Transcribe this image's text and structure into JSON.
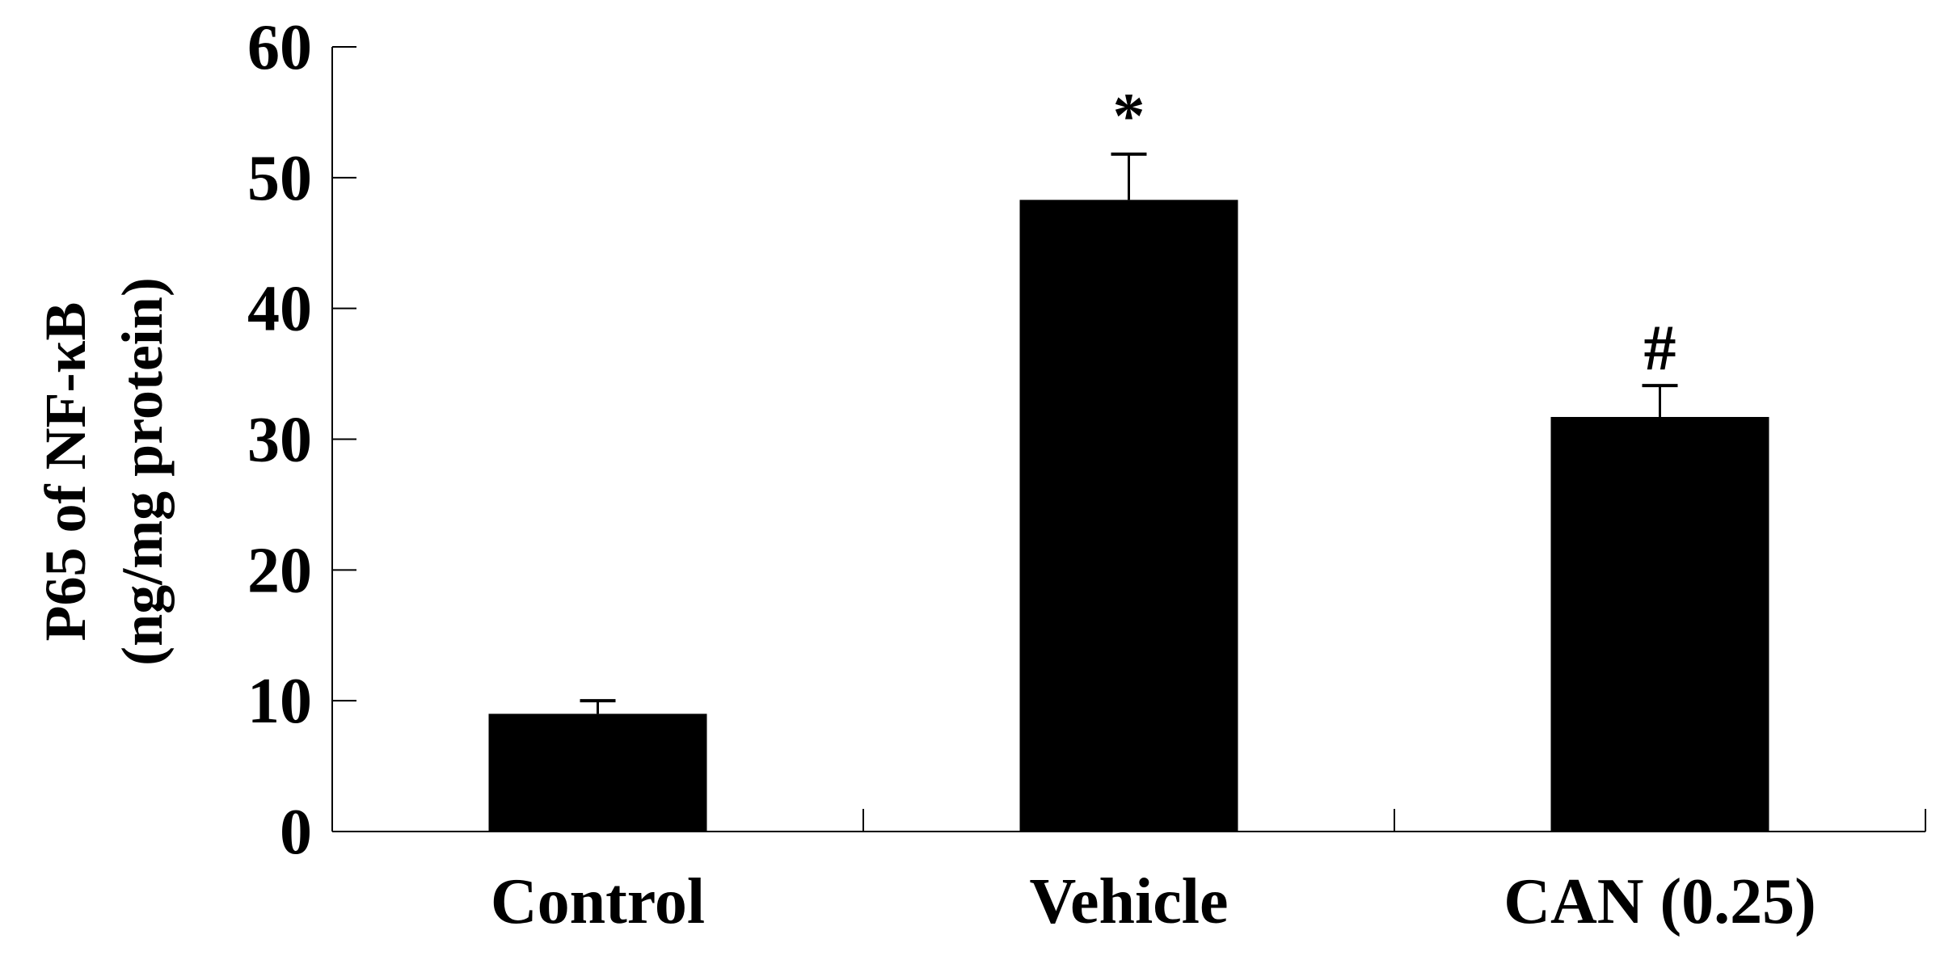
{
  "chart_data": {
    "type": "bar",
    "title": "",
    "xlabel": "",
    "ylabel_lines": [
      "P65 of NF-κB",
      "(ng/mg protein)"
    ],
    "categories": [
      "Control",
      "Vehicle",
      "CAN (0.25)"
    ],
    "values": [
      9.0,
      48.3,
      31.7
    ],
    "error_bars": [
      1.0,
      3.5,
      2.4
    ],
    "significance_markers": [
      "",
      "*",
      "#"
    ],
    "ylim": [
      0,
      60
    ],
    "yticks": [
      0,
      10,
      20,
      30,
      40,
      50,
      60
    ],
    "bar_color": "#000000",
    "grid": false,
    "legend": "none"
  }
}
